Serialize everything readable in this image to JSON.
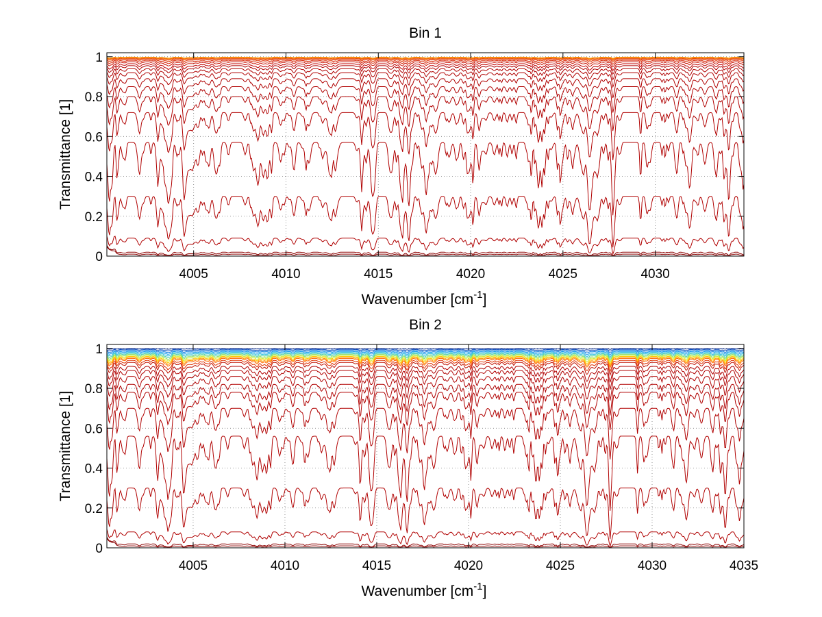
{
  "chart_data": [
    {
      "type": "line",
      "title": "Bin 1",
      "xlabel": {
        "text": "Wavenumber [cm",
        "sup": "-1",
        "close": "]"
      },
      "ylabel": "Transmittance [1]",
      "xlim": [
        4000.3,
        4034.8
      ],
      "ylim": [
        0,
        1.02
      ],
      "xticks": [
        4005,
        4010,
        4015,
        4020,
        4025,
        4030
      ],
      "xtick_labels": [
        "4005",
        "4010",
        "4015",
        "4020",
        "4025",
        "4030"
      ],
      "yticks": [
        0,
        0.2,
        0.4,
        0.6,
        0.8,
        1
      ],
      "ytick_labels": [
        "0",
        "0.2",
        "0.4",
        "0.6",
        "0.8",
        "1"
      ],
      "grid": true,
      "series_levels": [
        0.01,
        0.02,
        0.09,
        0.3,
        0.57,
        0.72,
        0.8,
        0.85,
        0.89,
        0.92,
        0.94,
        0.955,
        0.965,
        0.975,
        0.982,
        0.988,
        0.992,
        0.995,
        0.997,
        0.998
      ],
      "series_colors": [
        "#8b0000",
        "#8b0000",
        "#b00000",
        "#b00000",
        "#b00000",
        "#b00000",
        "#b00000",
        "#b00000",
        "#b00000",
        "#b00000",
        "#b00000",
        "#b00000",
        "#c00000",
        "#c81000",
        "#d62000",
        "#e03000",
        "#ea4a00",
        "#f06000",
        "#f58000",
        "#ff9900"
      ]
    },
    {
      "type": "line",
      "title": "Bin 2",
      "xlabel": {
        "text": "Wavenumber [cm",
        "sup": "-1",
        "close": "]"
      },
      "ylabel": "Transmittance [1]",
      "xlim": [
        4000.3,
        4035
      ],
      "ylim": [
        0,
        1.02
      ],
      "xticks": [
        4005,
        4010,
        4015,
        4020,
        4025,
        4030,
        4035
      ],
      "xtick_labels": [
        "4005",
        "4010",
        "4015",
        "4020",
        "4025",
        "4030",
        "4035"
      ],
      "yticks": [
        0,
        0.2,
        0.4,
        0.6,
        0.8,
        1
      ],
      "ytick_labels": [
        "0",
        "0.2",
        "0.4",
        "0.6",
        "0.8",
        "1"
      ],
      "grid": true,
      "series_levels": [
        0.01,
        0.02,
        0.08,
        0.3,
        0.56,
        0.7,
        0.78,
        0.82,
        0.86,
        0.89,
        0.91,
        0.93,
        0.94,
        0.95,
        0.955,
        0.96,
        0.965,
        0.97,
        0.975,
        0.98,
        0.985,
        0.99,
        0.995,
        1.0
      ],
      "series_colors": [
        "#8b0000",
        "#8b0000",
        "#b00000",
        "#b00000",
        "#b00000",
        "#b00000",
        "#b00000",
        "#b00000",
        "#b00000",
        "#b00000",
        "#b00000",
        "#c01000",
        "#e03000",
        "#ff6600",
        "#ff9900",
        "#ffcc00",
        "#ccee33",
        "#88dd66",
        "#44ccaa",
        "#22bbdd",
        "#1199ee",
        "#0077dd",
        "#0044bb",
        "#002288"
      ]
    }
  ]
}
